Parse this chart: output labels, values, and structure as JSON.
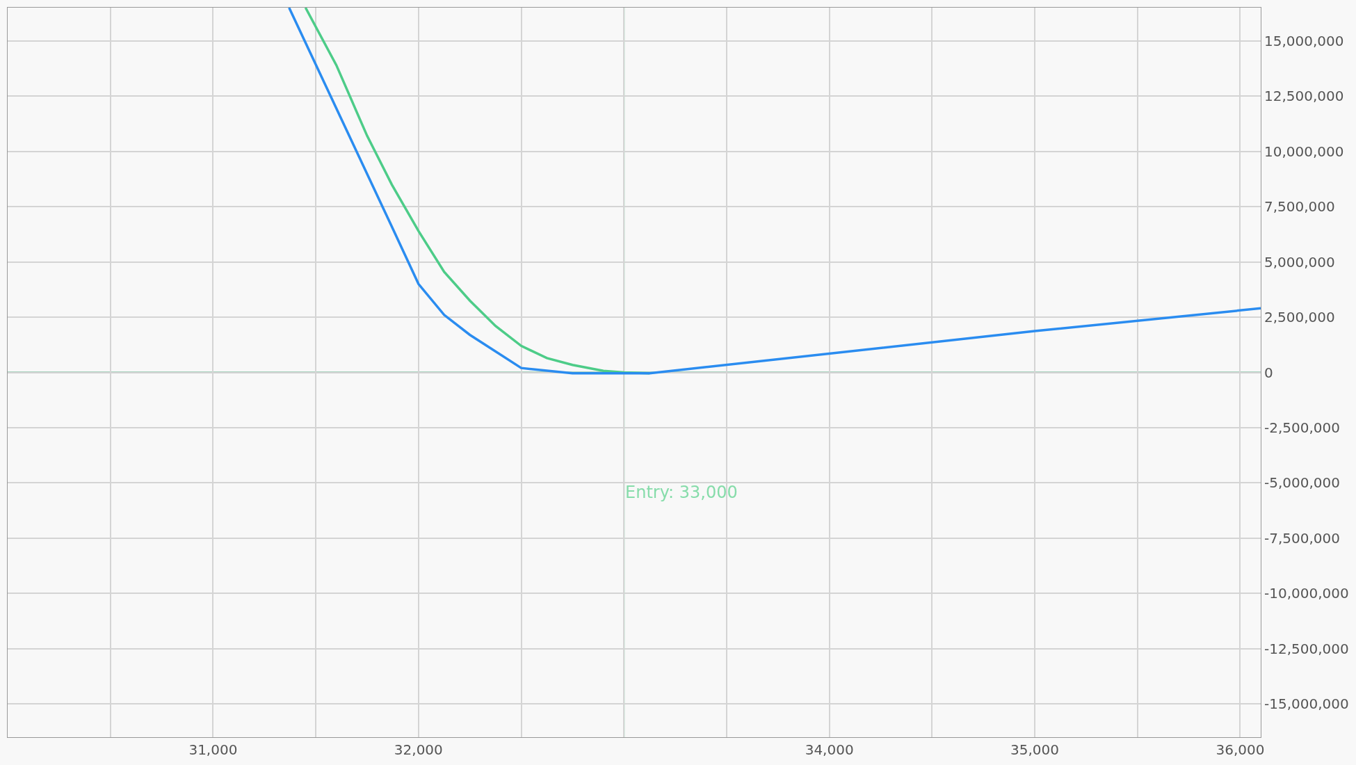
{
  "chart_data": {
    "type": "line",
    "series": [
      {
        "color": "#4dcc88",
        "x": [
          31450,
          31600,
          31750,
          31870,
          32000,
          32125,
          32250,
          32375,
          32500,
          32625,
          32750,
          32900,
          33000,
          33125
        ],
        "values": [
          16500000,
          13900000,
          10700000,
          8500000,
          6400000,
          4550000,
          3250000,
          2100000,
          1200000,
          650000,
          340000,
          70000,
          0,
          -40000
        ]
      },
      {
        "color": "#2a8cf0",
        "x": [
          31370,
          31870,
          32000,
          32125,
          32250,
          32500,
          32750,
          33000,
          33125,
          35000,
          36100
        ],
        "values": [
          16500000,
          6600000,
          4000000,
          2600000,
          1700000,
          200000,
          -40000,
          -40000,
          -40000,
          1870000,
          2900000
        ]
      }
    ],
    "xlim": [
      30000,
      36100
    ],
    "ylim": [
      -16500000,
      16500000
    ],
    "xticks": [
      {
        "value": 30500,
        "label": null
      },
      {
        "value": 31000,
        "label": "31,000"
      },
      {
        "value": 31500,
        "label": null
      },
      {
        "value": 32000,
        "label": "32,000"
      },
      {
        "value": 32500,
        "label": null
      },
      {
        "value": 33000,
        "label": null
      },
      {
        "value": 33500,
        "label": null
      },
      {
        "value": 34000,
        "label": "34,000"
      },
      {
        "value": 34500,
        "label": null
      },
      {
        "value": 35000,
        "label": "35,000"
      },
      {
        "value": 35500,
        "label": null
      },
      {
        "value": 36000,
        "label": "36,000"
      }
    ],
    "yticks": [
      {
        "value": -15000000,
        "label": "-15,000,000"
      },
      {
        "value": -12500000,
        "label": "-12,500,000"
      },
      {
        "value": -10000000,
        "label": "-10,000,000"
      },
      {
        "value": -7500000,
        "label": "-7,500,000"
      },
      {
        "value": -5000000,
        "label": "-5,000,000"
      },
      {
        "value": -2500000,
        "label": "-2,500,000"
      },
      0,
      {
        "value": 2500000,
        "label": "2,500,000"
      },
      {
        "value": 5000000,
        "label": "5,000,000"
      },
      {
        "value": 7500000,
        "label": "7,500,000"
      },
      {
        "value": 10000000,
        "label": "10,000,000"
      },
      {
        "value": 12500000,
        "label": "12,500,000"
      },
      {
        "value": 15000000,
        "label": "15,000,000"
      }
    ],
    "ref_lines": [
      {
        "axis": "x",
        "value": 33000,
        "label": "Entry: 33,000",
        "color": "#86dcaa"
      },
      {
        "axis": "y",
        "value": 0,
        "color": "#5fae88"
      }
    ],
    "grid": true,
    "marker": "none",
    "line_style": "solid"
  }
}
